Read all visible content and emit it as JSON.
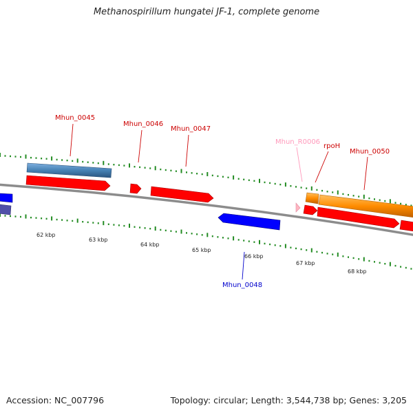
{
  "title": "Methanospirillum hungatei JF-1, complete genome",
  "footer": {
    "accession": "Accession: NC_007796",
    "summary": "Topology: circular; Length: 3,544,738 bp; Genes: 3,205"
  },
  "colors": {
    "backbone": "#8c8c8c",
    "forward_cds": "#ff0000",
    "reverse_cds": "#0000ff",
    "forward_gene": "#4682b4",
    "reverse_gene": "#7fa0c8",
    "rrna": "#ff8c00",
    "trna": "#ffb6c1",
    "tick": "#228b22",
    "forward_label": "#cc0000",
    "reverse_label": "#0000cc",
    "trna_label": "#ff99bb"
  },
  "kbp_labels": [
    "62 kbp",
    "63 kbp",
    "64 kbp",
    "65 kbp",
    "66 kbp",
    "67 kbp",
    "68 kbp"
  ],
  "gene_labels": [
    {
      "name": "Mhun_0045",
      "type": "forward"
    },
    {
      "name": "Mhun_0046",
      "type": "forward"
    },
    {
      "name": "Mhun_0047",
      "type": "forward"
    },
    {
      "name": "Mhun_R0006",
      "type": "trna"
    },
    {
      "name": "rpoH",
      "type": "forward"
    },
    {
      "name": "Mhun_0050",
      "type": "forward"
    },
    {
      "name": "Mhun_0048",
      "type": "reverse"
    }
  ]
}
